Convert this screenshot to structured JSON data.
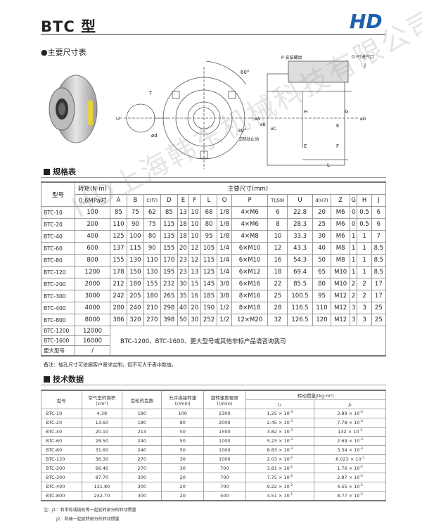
{
  "header": {
    "title": "BTC 型",
    "logo_text": "HD",
    "brand_color": "#1b5fb0"
  },
  "sections": {
    "dimensions": "●主要尺寸表",
    "spec": "规格表",
    "tech": "技术数据"
  },
  "drawing_labels": {
    "angle60": "60°",
    "angle30": "30°",
    "T": "T",
    "U": "U",
    "d": "ød",
    "stopper": "Z制动止动",
    "P": "P 安装螺纹",
    "O": "O PT进气口",
    "J": "J",
    "H": "H",
    "G": "G",
    "K": "K",
    "A": "øA",
    "B": "øB",
    "C": "øC",
    "D": "øD",
    "E": "E",
    "F": "F",
    "L": "L"
  },
  "spec_table": {
    "model_header": "型号",
    "torque_header": "转矩(N·m)",
    "torque_sub": "0.6MPa时",
    "dims_header": "主要尺寸(mm)",
    "columns": [
      "A",
      "B",
      "C(f7)",
      "D",
      "E",
      "F",
      "L",
      "O",
      "P",
      "T(JS9)",
      "U",
      "d(H7)",
      "Z",
      "G",
      "H",
      "J"
    ],
    "rows": [
      {
        "model": "BTC-10",
        "torque": "100",
        "dims": [
          "85",
          "75",
          "62",
          "85",
          "13",
          "10",
          "68",
          "1/8",
          "4×M6",
          "6",
          "22.8",
          "20",
          "M6",
          "0",
          "0.5",
          "6"
        ]
      },
      {
        "model": "BTC-20",
        "torque": "200",
        "dims": [
          "110",
          "90",
          "75",
          "115",
          "18",
          "10",
          "80",
          "1/8",
          "4×M6",
          "8",
          "28.3",
          "25",
          "M6",
          "0",
          "0.5",
          "6"
        ]
      },
      {
        "model": "BTC-40",
        "torque": "400",
        "dims": [
          "125",
          "100",
          "80",
          "135",
          "18",
          "10",
          "95",
          "1/8",
          "4×M8",
          "10",
          "33.3",
          "30",
          "M6",
          "1",
          "1",
          "7"
        ]
      },
      {
        "model": "BTC-60",
        "torque": "600",
        "dims": [
          "137",
          "115",
          "90",
          "155",
          "20",
          "12",
          "105",
          "1/4",
          "6×M10",
          "12",
          "43.3",
          "40",
          "M8",
          "1",
          "1",
          "8.5"
        ]
      },
      {
        "model": "BTC-80",
        "torque": "800",
        "dims": [
          "155",
          "130",
          "110",
          "170",
          "23",
          "12",
          "115",
          "1/4",
          "6×M10",
          "16",
          "54.3",
          "50",
          "M8",
          "1",
          "1",
          "8.5"
        ]
      },
      {
        "model": "BTC-120",
        "torque": "1200",
        "dims": [
          "178",
          "150",
          "130",
          "195",
          "23",
          "13",
          "125",
          "1/4",
          "6×M12",
          "18",
          "69.4",
          "65",
          "M10",
          "1",
          "1",
          "8.5"
        ]
      },
      {
        "model": "BTC-200",
        "torque": "2000",
        "dims": [
          "212",
          "180",
          "155",
          "232",
          "30",
          "15",
          "145",
          "3/8",
          "6×M16",
          "22",
          "85.5",
          "80",
          "M10",
          "2",
          "2",
          "17"
        ]
      },
      {
        "model": "BTC-300",
        "torque": "3000",
        "dims": [
          "242",
          "205",
          "180",
          "265",
          "35",
          "16",
          "185",
          "3/8",
          "8×M16",
          "25",
          "100.5",
          "95",
          "M12",
          "2",
          "2",
          "17"
        ]
      },
      {
        "model": "BTC-400",
        "torque": "4000",
        "dims": [
          "280",
          "240",
          "210",
          "298",
          "40",
          "20",
          "190",
          "1/2",
          "8×M18",
          "28",
          "116.5",
          "110",
          "M12",
          "3",
          "3",
          "25"
        ]
      },
      {
        "model": "BTC-800",
        "torque": "8000",
        "dims": [
          "386",
          "320",
          "270",
          "398",
          "50",
          "30",
          "252",
          "1/2",
          "12×M20",
          "32",
          "126.5",
          "120",
          "M12",
          "3",
          "3",
          "25"
        ]
      }
    ],
    "extra_rows": [
      {
        "model": "BTC-1200",
        "torque": "12000"
      },
      {
        "model": "BTC-1600",
        "torque": "16000"
      },
      {
        "model": "更大型号",
        "torque": "/"
      }
    ],
    "extra_note": "BTC-1200、BTC-1600、更大型号或其他非标产品请咨询我司",
    "footnote": "备注：轴孔尺寸可依据客户需求定制，但不可大于表中数值。"
  },
  "tech_table": {
    "headers": [
      "型号",
      "空气室的容积",
      "齿轮的齿数",
      "允许连接转速",
      "旋转速度极限",
      "转动惯量J(kg·m²)"
    ],
    "units": [
      "",
      "(cm³)",
      "",
      "(r/min)",
      "(r/min)"
    ],
    "sub_headers": [
      "J₁",
      "J₂"
    ],
    "rows": [
      [
        "BTC-10",
        "4.39",
        "180",
        "100",
        "2300",
        [
          "1.25",
          "-3"
        ],
        [
          "3.89",
          "-4"
        ]
      ],
      [
        "BTC-20",
        "13.60",
        "180",
        "80",
        "2000",
        [
          "2.45",
          "-3"
        ],
        [
          "7.78",
          "-4"
        ]
      ],
      [
        "BTC-40",
        "20.10",
        "214",
        "50",
        "1500",
        [
          "3.82",
          "-3"
        ],
        [
          "132",
          "-3"
        ]
      ],
      [
        "BTC-60",
        "28.50",
        "240",
        "50",
        "1000",
        [
          "5.23",
          "-3"
        ],
        [
          "2.69",
          "-3"
        ]
      ],
      [
        "BTC-80",
        "31.60",
        "240",
        "50",
        "1000",
        [
          "8.83",
          "-3"
        ],
        [
          "3.34",
          "-3"
        ]
      ],
      [
        "BTC-120",
        "36.30",
        "270",
        "30",
        "1000",
        [
          "2.03",
          "-2"
        ],
        [
          "8.023",
          "-3"
        ]
      ],
      [
        "BTC-200",
        "66.40",
        "270",
        "30",
        "700",
        [
          "3.81",
          "-2"
        ],
        [
          "1.76",
          "-2"
        ]
      ],
      [
        "BTC-300",
        "87.70",
        "300",
        "20",
        "700",
        [
          "7.75",
          "-2"
        ],
        [
          "2.87",
          "-2"
        ]
      ],
      [
        "BTC-400",
        "131.80",
        "300",
        "20",
        "700",
        [
          "9.22",
          "-2"
        ],
        [
          "4.55",
          "-2"
        ]
      ],
      [
        "BTC-800",
        "242.70",
        "300",
        "20",
        "500",
        [
          "4.51",
          "-1"
        ],
        [
          "8.77",
          "-2"
        ]
      ]
    ],
    "notes": [
      "注：J1：和带轮或链轮等一起旋转部分的转动惯量",
      "J2：和轴一起旋转部分的转动惯量"
    ]
  },
  "watermark": "HD上海韩东机械科技有限公司"
}
